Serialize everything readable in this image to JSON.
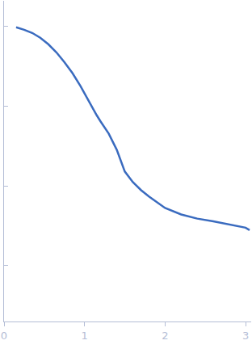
{
  "chart_data": {
    "type": "line",
    "x": [
      0.15,
      0.25,
      0.35,
      0.45,
      0.55,
      0.65,
      0.75,
      0.85,
      0.95,
      1.05,
      1.15,
      1.2,
      1.3,
      1.4,
      1.5,
      1.6,
      1.7,
      1.8,
      1.9,
      2.0,
      2.2,
      2.4,
      2.6,
      2.8,
      3.0,
      3.05
    ],
    "values": [
      0.977,
      0.911,
      0.83,
      0.722,
      0.599,
      0.474,
      0.357,
      0.26,
      0.179,
      0.116,
      0.0774,
      0.0643,
      0.0454,
      0.0285,
      0.0152,
      0.0112,
      0.0089,
      0.0074,
      0.0063,
      0.0053,
      0.0044,
      0.0039,
      0.0036,
      0.0033,
      0.003,
      0.0028
    ],
    "color": "#3a6bbf",
    "xlim": [
      0,
      3.07
    ],
    "xticks": [
      0,
      1,
      2,
      3
    ],
    "ylim": [
      0.0002,
      2.1
    ],
    "yticks": [
      0.001,
      0.01,
      0.1,
      1
    ],
    "log": "y",
    "grid": false,
    "tick_labels": "x"
  }
}
